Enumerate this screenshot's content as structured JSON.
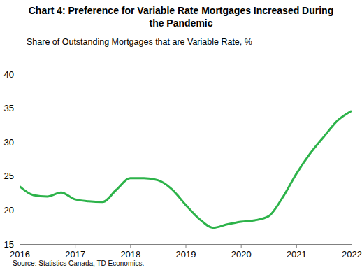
{
  "chart_data": {
    "type": "line",
    "title": "Chart 4: Preference for Variable Rate Mortgages Increased During the Pandemic",
    "subtitle": "Share of Outstanding Mortgages that are Variable Rate, %",
    "source": "Source: Statistics Canada, TD Economics.",
    "x": [
      2016,
      2016.25,
      2016.5,
      2016.75,
      2017,
      2017.25,
      2017.5,
      2017.75,
      2018,
      2018.25,
      2018.5,
      2018.75,
      2019,
      2019.25,
      2019.5,
      2019.75,
      2020,
      2020.25,
      2020.5,
      2020.75,
      2021,
      2021.25,
      2021.5,
      2021.75,
      2022
    ],
    "series": [
      {
        "name": "Share of Outstanding Mortgages that are Variable Rate",
        "color": "#2db34a",
        "values": [
          23.5,
          22.2,
          22.0,
          22.6,
          21.6,
          21.3,
          21.2,
          23.0,
          24.7,
          24.7,
          24.4,
          23.1,
          20.8,
          18.7,
          17.4,
          17.9,
          18.3,
          18.5,
          19.1,
          21.8,
          25.3,
          28.3,
          30.8,
          33.2,
          34.6
        ]
      }
    ],
    "xlim": [
      2016,
      2022
    ],
    "xticks": [
      2016,
      2017,
      2018,
      2019,
      2020,
      2021,
      2022
    ],
    "ylim": [
      15,
      40
    ],
    "yticks": [
      15,
      20,
      25,
      30,
      35,
      40
    ],
    "grid": false
  }
}
